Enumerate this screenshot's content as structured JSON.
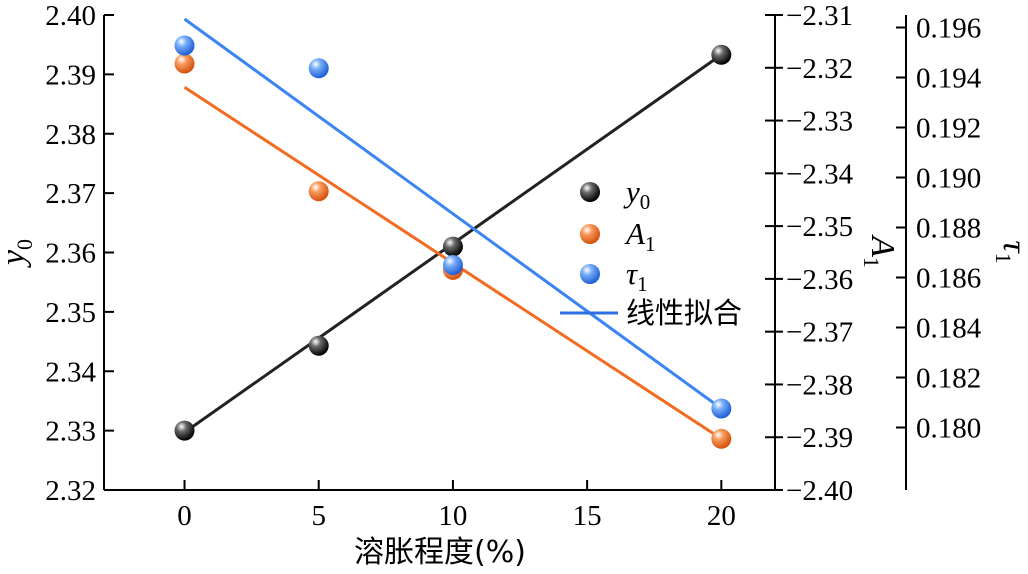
{
  "chart_data": {
    "type": "scatter",
    "title": "",
    "x": [
      0,
      5,
      10,
      20
    ],
    "xlabel": "溶胀程度(%)",
    "xlim": [
      -3,
      22
    ],
    "xticks": [
      0,
      5,
      10,
      15,
      20
    ],
    "axes": {
      "y0": {
        "label": "y",
        "label_sub": "0",
        "lim": [
          2.32,
          2.4
        ],
        "ticks": [
          "2.32",
          "2.33",
          "2.34",
          "2.35",
          "2.36",
          "2.37",
          "2.38",
          "2.39",
          "2.40"
        ]
      },
      "A1": {
        "label": "A",
        "label_sub": "1",
        "lim": [
          -2.4,
          -2.31
        ],
        "ticks": [
          "−2.40",
          "−2.39",
          "−2.38",
          "−2.37",
          "−2.36",
          "−2.35",
          "−2.34",
          "−2.33",
          "−2.32",
          "−2.31"
        ]
      },
      "tau1": {
        "label": "τ",
        "label_sub": "1",
        "lim": [
          0.1775,
          0.1965
        ],
        "ticks": [
          "0.180",
          "0.182",
          "0.184",
          "0.186",
          "0.188",
          "0.190",
          "0.192",
          "0.194",
          "0.196"
        ]
      }
    },
    "series": [
      {
        "name": "y",
        "name_sub": "0",
        "axis": "y0",
        "color": "#222222",
        "values": [
          2.33,
          2.3443,
          2.361,
          2.3933
        ],
        "fit": {
          "x": [
            0,
            20
          ],
          "y": [
            2.3297,
            2.3933
          ]
        }
      },
      {
        "name": "A",
        "name_sub": "1",
        "axis": "A1",
        "color": "#F26B21",
        "values": [
          -2.3192,
          -2.3434,
          -2.3583,
          -2.3903
        ],
        "fit": {
          "x": [
            0,
            20
          ],
          "y": [
            -2.3237,
            -2.3903
          ]
        }
      },
      {
        "name": "τ",
        "name_sub": "1",
        "axis": "tau1",
        "color": "#3B84F2",
        "values": [
          0.19528,
          0.19437,
          0.1865,
          0.18076
        ],
        "fit": {
          "x": [
            0,
            20
          ],
          "y": [
            0.19634,
            0.18076
          ]
        }
      }
    ],
    "legend": {
      "placement": "center-right",
      "fit_label": "线性拟合",
      "fit_color": "#2F6FE6"
    },
    "grid": false
  }
}
